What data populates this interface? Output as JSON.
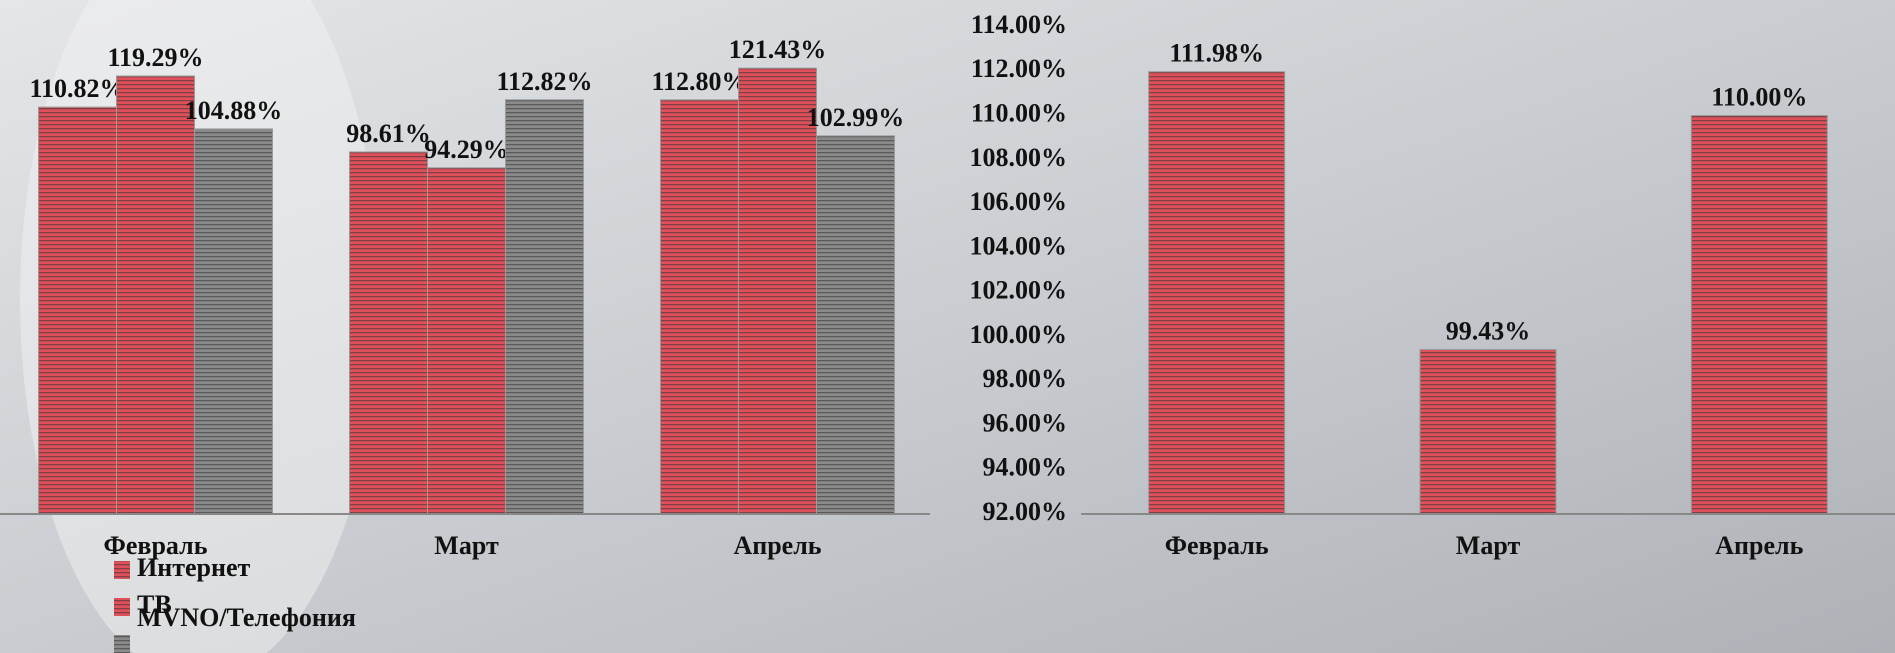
{
  "chart_data": [
    {
      "type": "bar",
      "categories": [
        "Февраль",
        "Март",
        "Апрель"
      ],
      "series": [
        {
          "name": "Интернет",
          "color": "#e0505a",
          "values": [
            110.82,
            98.61,
            112.8
          ],
          "value_labels": [
            "110.82%",
            "98.61%",
            "112.80%"
          ]
        },
        {
          "name": "ТВ",
          "color": "#e0505a",
          "values": [
            119.29,
            94.29,
            121.43
          ],
          "value_labels": [
            "119.29%",
            "94.29%",
            "121.43%"
          ]
        },
        {
          "name": "MVNO/Телефония",
          "color": "#8a8a8a",
          "values": [
            104.88,
            112.82,
            102.99
          ],
          "value_labels": [
            "104.88%",
            "112.82%",
            "102.99%"
          ]
        }
      ],
      "ylim": [
        0,
        140
      ]
    },
    {
      "type": "bar",
      "categories": [
        "Февраль",
        "Март",
        "Апрель"
      ],
      "values": [
        111.98,
        99.43,
        110.0
      ],
      "value_labels": [
        "111.98%",
        "99.43%",
        "110.00%"
      ],
      "color": "#e0505a",
      "ylim": [
        92,
        114
      ],
      "yticks": [
        {
          "value": 92,
          "label": "92.00%"
        },
        {
          "value": 94,
          "label": "94.00%"
        },
        {
          "value": 96,
          "label": "96.00%"
        },
        {
          "value": 98,
          "label": "98.00%"
        },
        {
          "value": 100,
          "label": "100.00%"
        },
        {
          "value": 102,
          "label": "102.00%"
        },
        {
          "value": 104,
          "label": "104.00%"
        },
        {
          "value": 106,
          "label": "106.00%"
        },
        {
          "value": 108,
          "label": "108.00%"
        },
        {
          "value": 110,
          "label": "110.00%"
        },
        {
          "value": 112,
          "label": "112.00%"
        },
        {
          "value": 114,
          "label": "114.00%"
        }
      ]
    }
  ]
}
